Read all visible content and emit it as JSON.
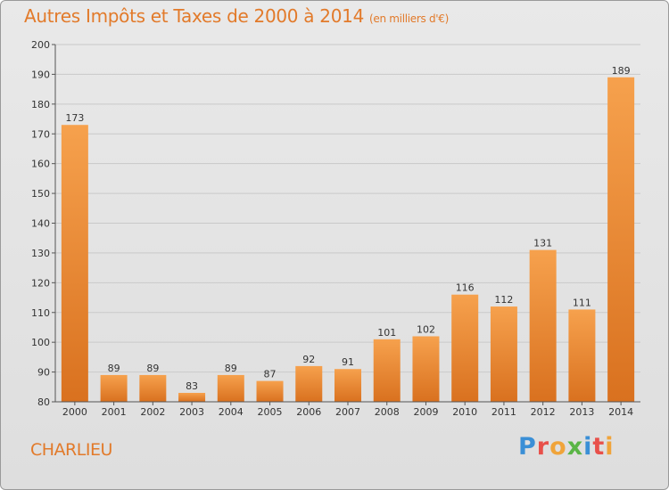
{
  "title": "Autres Impôts et Taxes de 2000 à 2014",
  "subtitle": "(en milliers d'€)",
  "location": "CHARLIEU",
  "logo": {
    "text": "Proxiti",
    "colors": [
      "#3a8fd6",
      "#e8504a",
      "#f0a43a",
      "#5ab546",
      "#3a8fd6",
      "#e8504a",
      "#f0a43a"
    ]
  },
  "colors": {
    "bar_top": "#f6a14d",
    "bar_bottom": "#d9711f",
    "title": "#e27a2a"
  },
  "chart_data": {
    "type": "bar",
    "categories": [
      "2000",
      "2001",
      "2002",
      "2003",
      "2004",
      "2005",
      "2006",
      "2007",
      "2008",
      "2009",
      "2010",
      "2011",
      "2012",
      "2013",
      "2014"
    ],
    "values": [
      173,
      89,
      89,
      83,
      89,
      87,
      92,
      91,
      101,
      102,
      116,
      112,
      131,
      111,
      189
    ],
    "ylim": [
      80,
      200
    ],
    "yticks": [
      80,
      90,
      100,
      110,
      120,
      130,
      140,
      150,
      160,
      170,
      180,
      190,
      200
    ],
    "grid": true
  }
}
